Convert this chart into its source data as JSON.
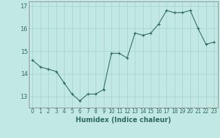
{
  "x": [
    0,
    1,
    2,
    3,
    4,
    5,
    6,
    7,
    8,
    9,
    10,
    11,
    12,
    13,
    14,
    15,
    16,
    17,
    18,
    19,
    20,
    21,
    22,
    23
  ],
  "y": [
    14.6,
    14.3,
    14.2,
    14.1,
    13.6,
    13.1,
    12.8,
    13.1,
    13.1,
    13.3,
    14.9,
    14.9,
    14.7,
    15.8,
    15.7,
    15.8,
    16.2,
    16.8,
    16.7,
    16.7,
    16.8,
    16.0,
    15.3,
    15.4
  ],
  "xlabel": "Humidex (Indice chaleur)",
  "line_color": "#2e6b5e",
  "marker": "+",
  "bg_color": "#c2e8e4",
  "grid_color": "#a8d4d0",
  "axis_color": "#888888",
  "xlim": [
    -0.5,
    23.5
  ],
  "ylim": [
    12.5,
    17.2
  ],
  "yticks": [
    13,
    14,
    15,
    16,
    17
  ],
  "xticks": [
    0,
    1,
    2,
    3,
    4,
    5,
    6,
    7,
    8,
    9,
    10,
    11,
    12,
    13,
    14,
    15,
    16,
    17,
    18,
    19,
    20,
    21,
    22,
    23
  ],
  "xtick_labels": [
    "0",
    "1",
    "2",
    "3",
    "4",
    "5",
    "6",
    "7",
    "8",
    "9",
    "10",
    "11",
    "12",
    "13",
    "14",
    "15",
    "16",
    "17",
    "18",
    "19",
    "20",
    "21",
    "22",
    "23"
  ]
}
